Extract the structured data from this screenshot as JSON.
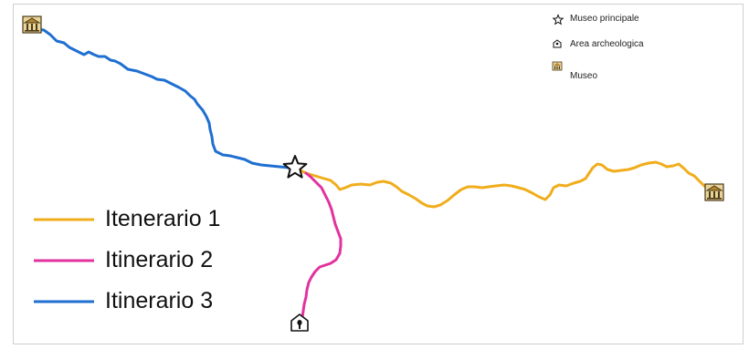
{
  "map_key": {
    "main_museum": {
      "label": "Museo principale",
      "icon": "star-icon"
    },
    "archaeological_area": {
      "label": "Area archeologica",
      "icon": "archaeological-area-icon"
    },
    "museum": {
      "label": "Museo",
      "icon": "museum-icon"
    }
  },
  "routes": [
    {
      "label": "Itenerario 1",
      "color": "#f0ad1c"
    },
    {
      "label": "Itinerario 2",
      "color": "#e2329e"
    },
    {
      "label": "Itinerario 3",
      "color": "#1f6fd1"
    }
  ]
}
